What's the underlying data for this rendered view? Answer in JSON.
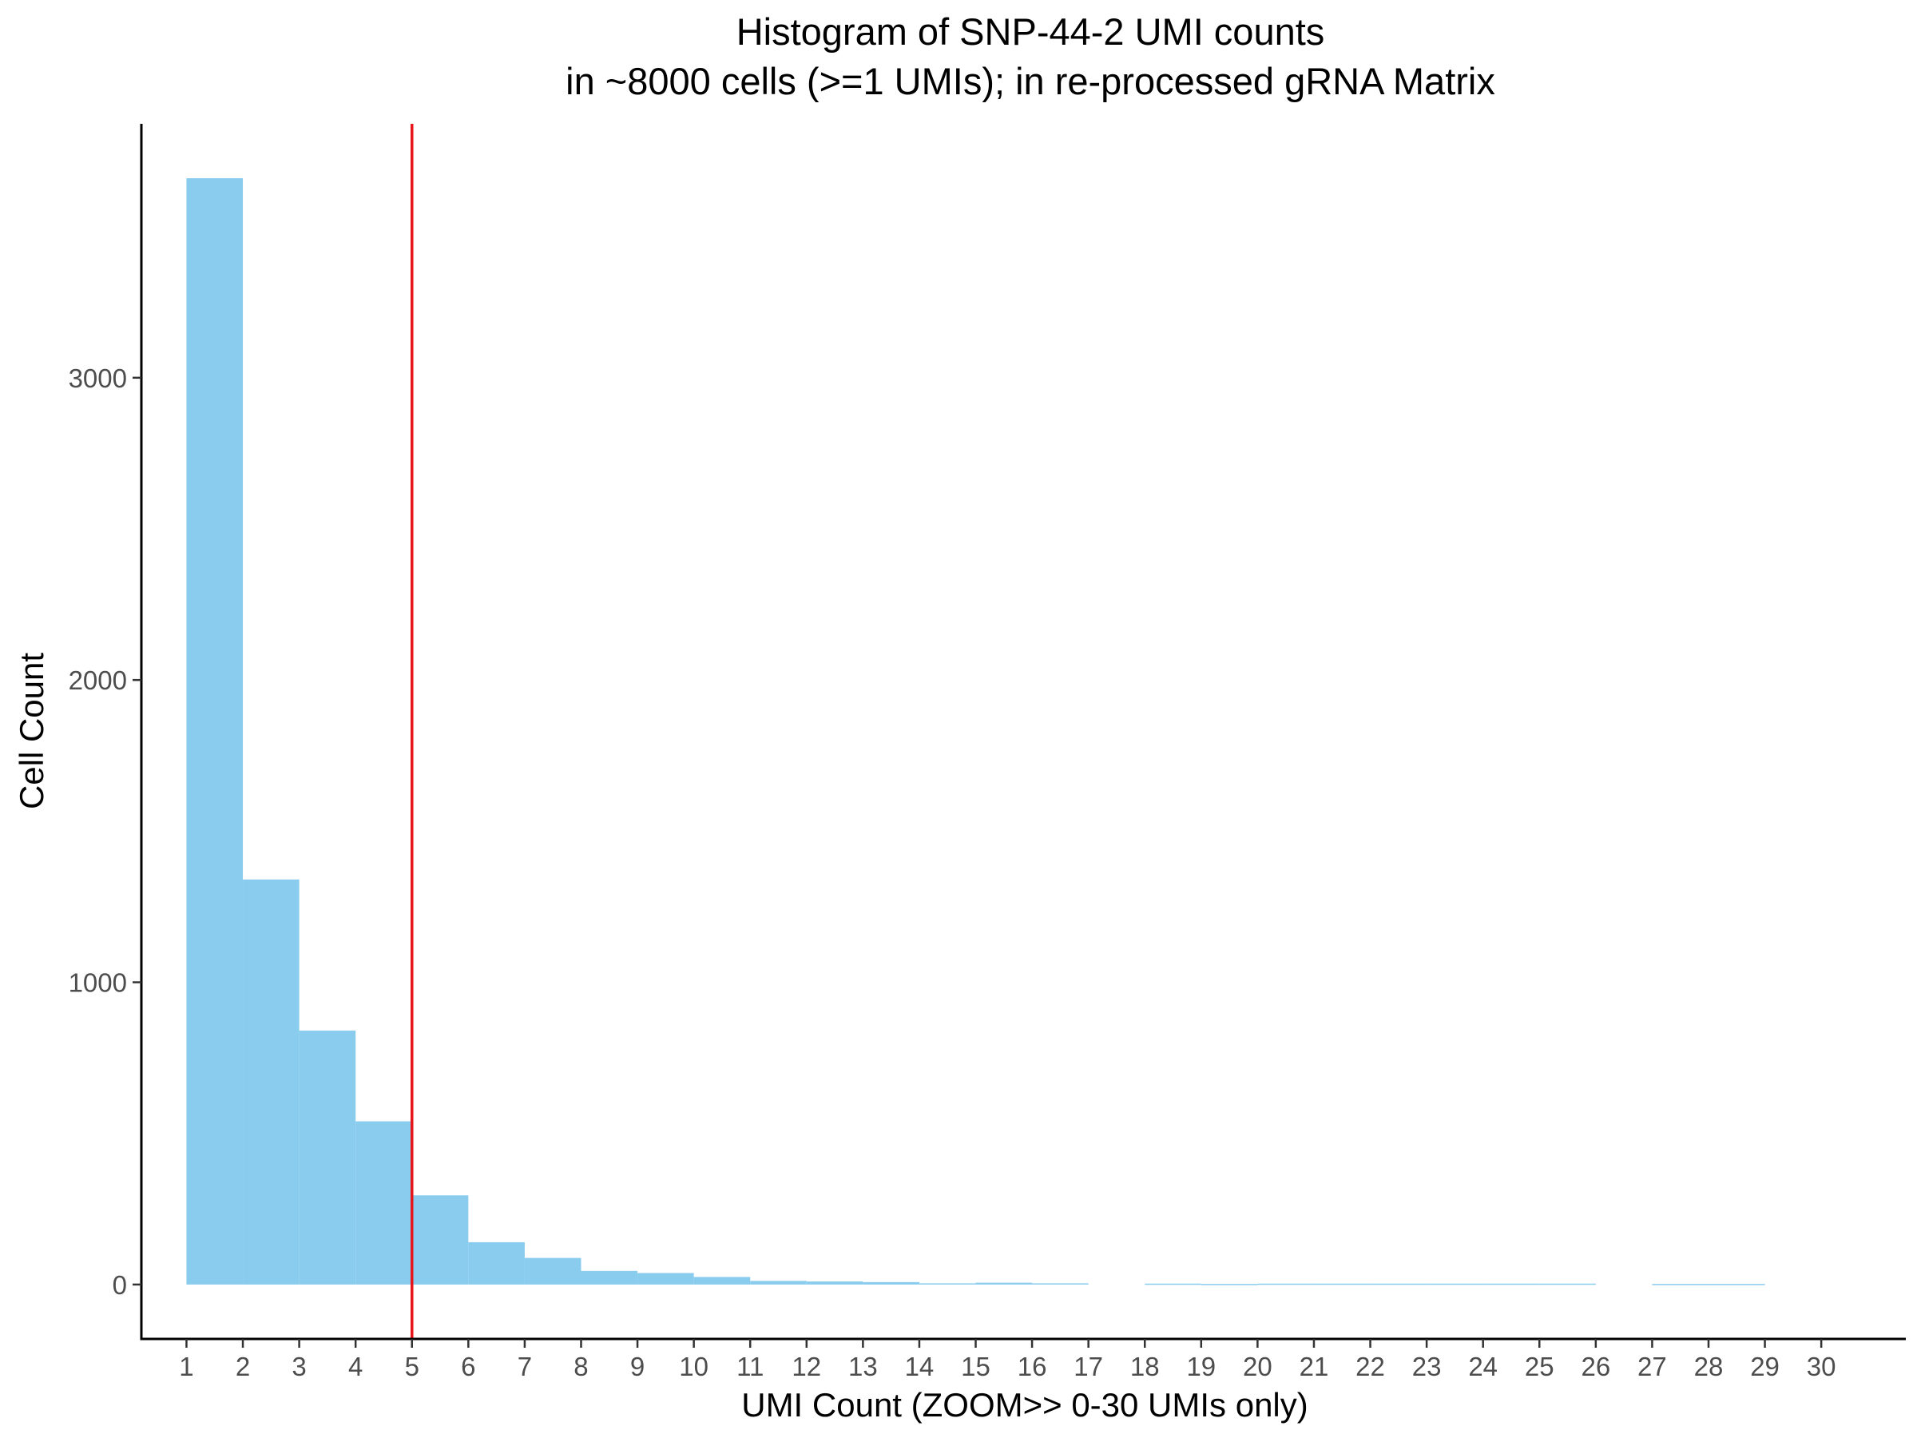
{
  "chart_data": {
    "type": "bar",
    "title": "Histogram of SNP-44-2 UMI counts",
    "subtitle": "in ~8000 cells (>=1 UMIs); in re-processed gRNA Matrix",
    "xlabel": "UMI Count (ZOOM>> 0-30 UMIs only)",
    "ylabel": "Cell Count",
    "x_ticks": [
      1,
      2,
      3,
      4,
      5,
      6,
      7,
      8,
      9,
      10,
      11,
      12,
      13,
      14,
      15,
      16,
      17,
      18,
      19,
      20,
      21,
      22,
      23,
      24,
      25,
      26,
      27,
      28,
      29,
      30
    ],
    "y_ticks": [
      0,
      1000,
      2000,
      3000
    ],
    "xlim": [
      0.2,
      31.5
    ],
    "ylim": [
      -180,
      3840
    ],
    "bins": [
      {
        "start": 1,
        "end": 2,
        "value": 3660
      },
      {
        "start": 2,
        "end": 3,
        "value": 1340
      },
      {
        "start": 3,
        "end": 4,
        "value": 840
      },
      {
        "start": 4,
        "end": 5,
        "value": 540
      },
      {
        "start": 5,
        "end": 6,
        "value": 295
      },
      {
        "start": 6,
        "end": 7,
        "value": 140
      },
      {
        "start": 7,
        "end": 8,
        "value": 88
      },
      {
        "start": 8,
        "end": 9,
        "value": 45
      },
      {
        "start": 9,
        "end": 10,
        "value": 38
      },
      {
        "start": 10,
        "end": 11,
        "value": 25
      },
      {
        "start": 11,
        "end": 12,
        "value": 12
      },
      {
        "start": 12,
        "end": 13,
        "value": 10
      },
      {
        "start": 13,
        "end": 14,
        "value": 8
      },
      {
        "start": 14,
        "end": 15,
        "value": 4
      },
      {
        "start": 15,
        "end": 16,
        "value": 6
      },
      {
        "start": 16,
        "end": 17,
        "value": 4
      },
      {
        "start": 17,
        "end": 18,
        "value": 0
      },
      {
        "start": 18,
        "end": 19,
        "value": 3
      },
      {
        "start": 19,
        "end": 20,
        "value": 2
      },
      {
        "start": 20,
        "end": 21,
        "value": 3
      },
      {
        "start": 21,
        "end": 22,
        "value": 3
      },
      {
        "start": 22,
        "end": 23,
        "value": 3
      },
      {
        "start": 23,
        "end": 24,
        "value": 3
      },
      {
        "start": 24,
        "end": 25,
        "value": 3
      },
      {
        "start": 25,
        "end": 26,
        "value": 3
      },
      {
        "start": 26,
        "end": 27,
        "value": 0
      },
      {
        "start": 27,
        "end": 28,
        "value": 2
      },
      {
        "start": 28,
        "end": 29,
        "value": 2
      }
    ],
    "threshold_x": 5,
    "bar_color": "#89CCED",
    "threshold_color": "#E8151B",
    "axis_color": "#000000",
    "grid": false,
    "legend": "none"
  }
}
